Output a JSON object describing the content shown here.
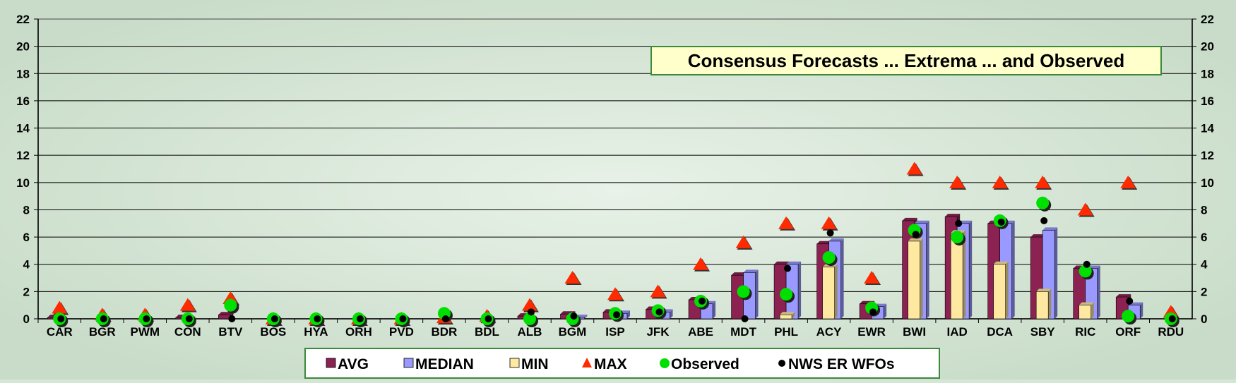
{
  "chart_data": {
    "type": "bar",
    "title": "Consensus Forecasts ... Extrema ... and Observed",
    "xlabel": "",
    "ylabel": "",
    "ylim": [
      0,
      22
    ],
    "yticks": [
      0,
      2,
      4,
      6,
      8,
      10,
      12,
      14,
      16,
      18,
      20,
      22
    ],
    "grid": true,
    "secondary_y_axis": true,
    "legend_position": "bottom",
    "categories": [
      "CAR",
      "BGR",
      "PWM",
      "CON",
      "BTV",
      "BOS",
      "HYA",
      "ORH",
      "PVD",
      "BDR",
      "BDL",
      "ALB",
      "BGM",
      "ISP",
      "JFK",
      "ABE",
      "MDT",
      "PHL",
      "ACY",
      "EWR",
      "BWI",
      "IAD",
      "DCA",
      "SBY",
      "RIC",
      "ORF",
      "RDU"
    ],
    "series": [
      {
        "name": "AVG",
        "kind": "bar",
        "color": "#8b2252",
        "values": [
          0.1,
          0,
          0,
          0.1,
          0.3,
          0,
          0,
          0,
          0,
          0,
          0,
          0.2,
          0.35,
          0.5,
          0.7,
          1.4,
          3.2,
          4,
          5.5,
          1.1,
          7.2,
          7.5,
          7,
          6,
          3.7,
          1.6,
          0
        ]
      },
      {
        "name": "MEDIAN",
        "kind": "bar",
        "color": "#9999ff",
        "values": [
          0,
          0,
          0,
          0,
          0,
          0,
          0,
          0,
          0,
          0,
          0,
          0,
          0.1,
          0.4,
          0.5,
          1.1,
          3.4,
          4,
          5.7,
          0.9,
          7,
          7,
          7,
          6.5,
          3.7,
          1,
          0
        ]
      },
      {
        "name": "MIN",
        "kind": "bar",
        "color": "#ffe8a0",
        "values": [
          0,
          0,
          0,
          0,
          0,
          0,
          0,
          0,
          0,
          0,
          0,
          0,
          0,
          0,
          0,
          0,
          0,
          0.3,
          3.8,
          0,
          5.7,
          6.3,
          4,
          2,
          1,
          0,
          0
        ]
      },
      {
        "name": "MAX",
        "kind": "triangle",
        "color": "#ff2a00",
        "values": [
          0.8,
          0.3,
          0.3,
          1,
          1.5,
          0,
          0,
          0,
          0,
          0.1,
          0.2,
          1,
          3,
          1.8,
          2,
          4,
          5.6,
          7,
          7,
          3,
          11,
          10,
          10,
          10,
          8,
          10,
          0.5
        ]
      },
      {
        "name": "Observed",
        "kind": "dot",
        "color": "#00e000",
        "values": [
          0,
          0,
          0,
          0,
          1,
          0,
          0,
          0,
          0,
          0.4,
          0,
          0,
          0,
          0.4,
          0.6,
          1.3,
          2,
          1.8,
          4.5,
          0.8,
          6.5,
          6,
          7.2,
          8.5,
          3.5,
          0.2,
          0
        ]
      },
      {
        "name": "NWS ER WFOs",
        "kind": "dot",
        "color": "#000000",
        "values": [
          0,
          0,
          0,
          0,
          0,
          0,
          0,
          0,
          0,
          0,
          0,
          0.5,
          0.2,
          0.3,
          0.5,
          1.3,
          0,
          3.7,
          6.3,
          0.5,
          6.2,
          7,
          7.1,
          7.2,
          4,
          1.3,
          0
        ]
      }
    ]
  }
}
